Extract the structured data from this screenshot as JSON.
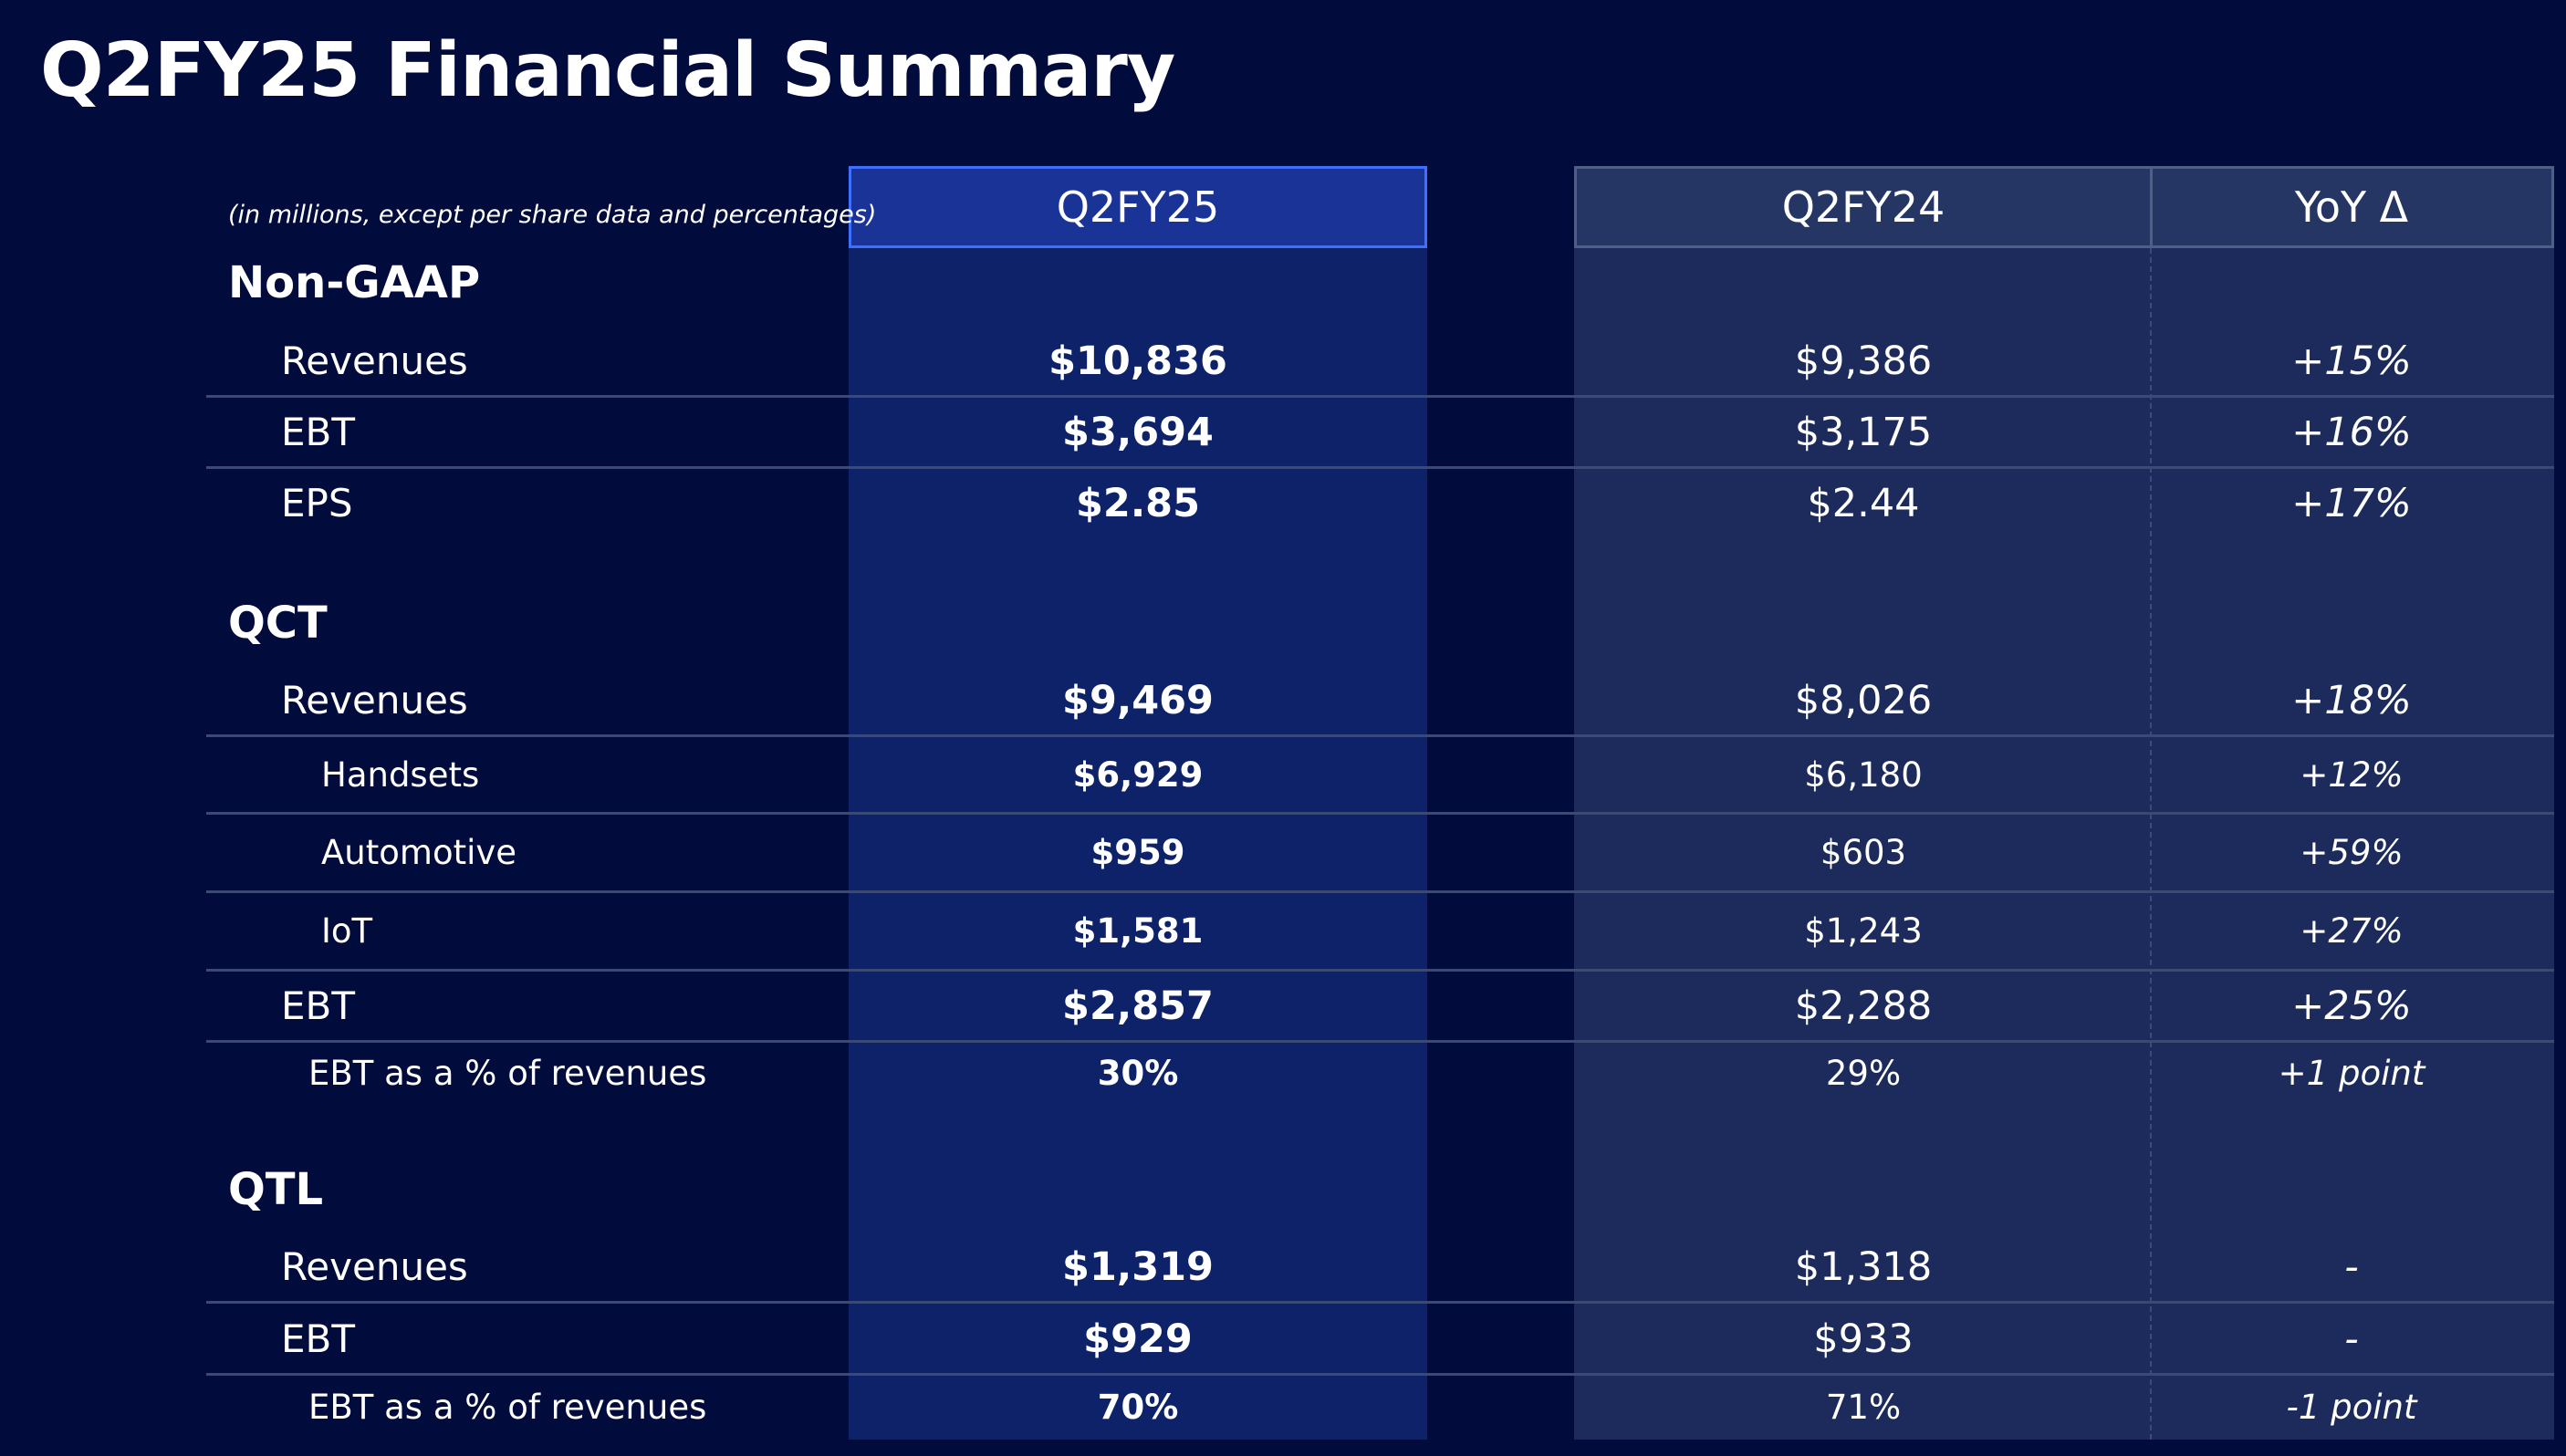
{
  "title": "Q2FY25 Financial Summary",
  "units_note": "(in millions, except per share data and percentages)",
  "columns": {
    "current": "Q2FY25",
    "prior": "Q2FY24",
    "yoy": "YoY Δ"
  },
  "colors": {
    "background": "#010b3c",
    "current_panel": "#0d2269",
    "current_header": "#1a3396",
    "current_header_border": "#3f6fff",
    "prior_panel": "#1c2b5b",
    "divider": "#3b4a74"
  },
  "sections": [
    {
      "name": "Non-GAAP",
      "rows": [
        {
          "label": "Revenues",
          "current": "$10,836",
          "prior": "$9,386",
          "yoy": "+15%"
        },
        {
          "label": "EBT",
          "current": "$3,694",
          "prior": "$3,175",
          "yoy": "+16%"
        },
        {
          "label": "EPS",
          "current": "$2.85",
          "prior": "$2.44",
          "yoy": "+17%"
        }
      ]
    },
    {
      "name": "QCT",
      "rows": [
        {
          "label": "Revenues",
          "current": "$9,469",
          "prior": "$8,026",
          "yoy": "+18%"
        },
        {
          "label": "Handsets",
          "current": "$6,929",
          "prior": "$6,180",
          "yoy": "+12%"
        },
        {
          "label": "Automotive",
          "current": "$959",
          "prior": "$603",
          "yoy": "+59%"
        },
        {
          "label": "IoT",
          "current": "$1,581",
          "prior": "$1,243",
          "yoy": "+27%"
        },
        {
          "label": "EBT",
          "current": "$2,857",
          "prior": "$2,288",
          "yoy": "+25%"
        },
        {
          "label": "EBT as a % of revenues",
          "current": "30%",
          "prior": "29%",
          "yoy": "+1 point"
        }
      ]
    },
    {
      "name": "QTL",
      "rows": [
        {
          "label": "Revenues",
          "current": "$1,319",
          "prior": "$1,318",
          "yoy": "-"
        },
        {
          "label": "EBT",
          "current": "$929",
          "prior": "$933",
          "yoy": "-"
        },
        {
          "label": "EBT as a % of revenues",
          "current": "70%",
          "prior": "71%",
          "yoy": "-1 point"
        }
      ]
    }
  ]
}
